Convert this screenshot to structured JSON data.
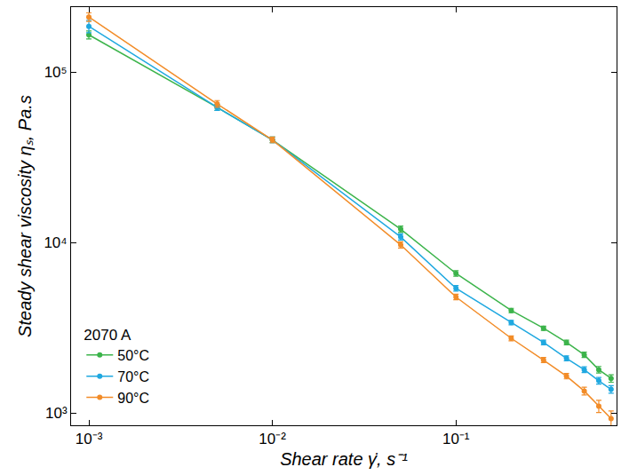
{
  "chart_data": {
    "type": "line",
    "x_label": "Shear rate γ̇, s⁻¹",
    "y_label": "Steady shear viscosity ηₛ, Pa.s",
    "legend_title": "2070 A",
    "legend": "bottom left",
    "log": true,
    "grid": false,
    "marker": "circle",
    "line_style": "solid",
    "x": [
      0.001,
      0.005,
      0.01,
      0.05,
      0.1,
      0.2,
      0.3,
      0.4,
      0.5,
      0.6,
      0.7
    ],
    "xlim": [
      0.0008,
      0.75
    ],
    "xticks": [
      {
        "value": 0.001,
        "label": "10⁻³"
      },
      {
        "value": 0.01,
        "label": "10⁻²"
      },
      {
        "value": 0.1,
        "label": "10⁻¹"
      }
    ],
    "ylim": [
      850,
      240000
    ],
    "yticks": [
      {
        "value": 1000,
        "label": "10³"
      },
      {
        "value": 10000,
        "label": "10⁴"
      },
      {
        "value": 100000,
        "label": "10⁵"
      }
    ],
    "series": [
      {
        "name": "50°C",
        "color": "#3cb44b",
        "values": [
          165000,
          62000,
          40000,
          12000,
          6600,
          4000,
          3150,
          2600,
          2200,
          1800,
          1600
        ],
        "errors": [
          9000,
          2500,
          1500,
          500,
          250,
          120,
          90,
          80,
          80,
          80,
          80
        ]
      },
      {
        "name": "70°C",
        "color": "#1fa8e0",
        "values": [
          185000,
          62000,
          40000,
          10800,
          5400,
          3400,
          2600,
          2100,
          1800,
          1550,
          1380
        ],
        "errors": [
          15000,
          2500,
          1500,
          450,
          200,
          100,
          80,
          70,
          70,
          70,
          70
        ]
      },
      {
        "name": "90°C",
        "color": "#f28c28",
        "values": [
          210000,
          65000,
          40000,
          9700,
          4800,
          2750,
          2050,
          1650,
          1350,
          1100,
          930
        ],
        "errors": [
          12000,
          3000,
          1500,
          400,
          180,
          90,
          70,
          60,
          70,
          90,
          100
        ]
      }
    ]
  }
}
